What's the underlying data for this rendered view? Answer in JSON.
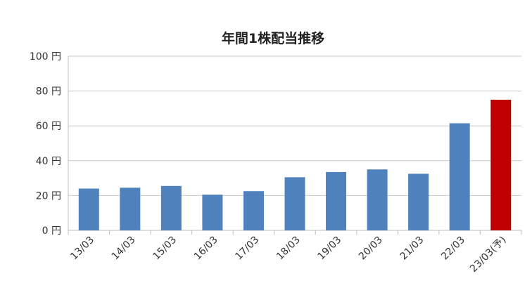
{
  "chart_data": {
    "type": "bar",
    "title": "年間1株配当推移",
    "categories": [
      "13/03",
      "14/03",
      "15/03",
      "16/03",
      "17/03",
      "18/03",
      "19/03",
      "20/03",
      "21/03",
      "22/03",
      "23/03(予)"
    ],
    "values": [
      24,
      24.5,
      25.5,
      20.5,
      22.5,
      30.5,
      33.5,
      35,
      32.5,
      61.5,
      75
    ],
    "ylim": [
      0,
      100
    ],
    "yticks": [
      0,
      20,
      40,
      60,
      80,
      100
    ],
    "y_unit_suffix": " 円",
    "y_tick_labels": [
      "0 円",
      "20 円",
      "40 円",
      "60 円",
      "80 円",
      "100 円"
    ],
    "grid": true,
    "colors": {
      "actual": "#4f81bd",
      "forecast": "#c00000",
      "grid": "#c8c8c8",
      "axis": "#bfbfbf"
    },
    "forecast_index": 10
  }
}
